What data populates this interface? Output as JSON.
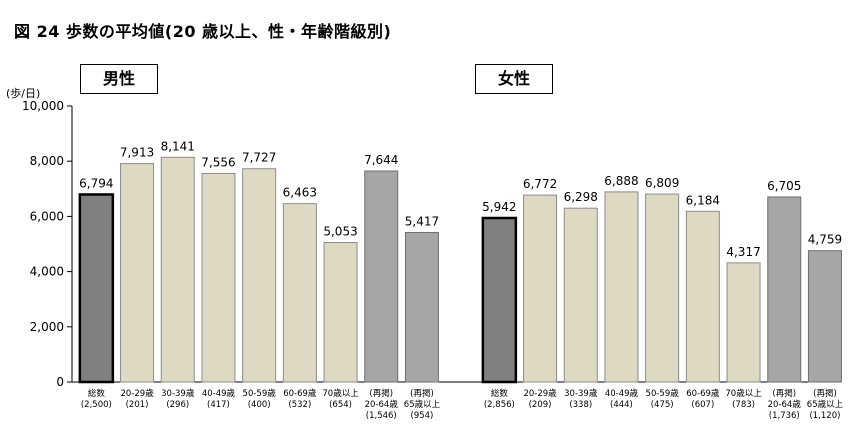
{
  "title": "図 24 歩数の平均値(20 歳以上、性・年齢階級別)",
  "chart_data": {
    "type": "bar",
    "y_unit": "(歩/日)",
    "ylim": [
      0,
      10000
    ],
    "y_ticks": [
      "0",
      "2,000",
      "4,000",
      "6,000",
      "8,000",
      "10,000"
    ],
    "y_tick_values": [
      0,
      2000,
      4000,
      6000,
      8000,
      10000
    ],
    "panels": [
      {
        "name": "男性",
        "categories": [
          "総数",
          "20-29歳",
          "30-39歳",
          "40-49歳",
          "50-59歳",
          "60-69歳",
          "70歳以上",
          "(再掲)\n20-64歳",
          "(再掲)\n65歳以上"
        ],
        "counts": [
          "(2,500)",
          "(201)",
          "(296)",
          "(417)",
          "(400)",
          "(532)",
          "(654)",
          "(1,546)",
          "(954)"
        ],
        "values": [
          6794,
          7913,
          8141,
          7556,
          7727,
          6463,
          5053,
          7644,
          5417
        ],
        "value_labels": [
          "6,794",
          "7,913",
          "8,141",
          "7,556",
          "7,727",
          "6,463",
          "5,053",
          "7,644",
          "5,417"
        ]
      },
      {
        "name": "女性",
        "categories": [
          "総数",
          "20-29歳",
          "30-39歳",
          "40-49歳",
          "50-59歳",
          "60-69歳",
          "70歳以上",
          "(再掲)\n20-64歳",
          "(再掲)\n65歳以上"
        ],
        "counts": [
          "(2,856)",
          "(209)",
          "(338)",
          "(444)",
          "(475)",
          "(607)",
          "(783)",
          "(1,736)",
          "(1,120)"
        ],
        "values": [
          5942,
          6772,
          6298,
          6888,
          6809,
          6184,
          4317,
          6705,
          4759
        ],
        "value_labels": [
          "5,942",
          "6,772",
          "6,298",
          "6,888",
          "6,809",
          "6,184",
          "4,317",
          "6,705",
          "4,759"
        ]
      }
    ],
    "colors": {
      "total": "#808080",
      "age_group": "#ddd9c3",
      "restated": "#a6a6a6",
      "outline": "#000000"
    }
  }
}
